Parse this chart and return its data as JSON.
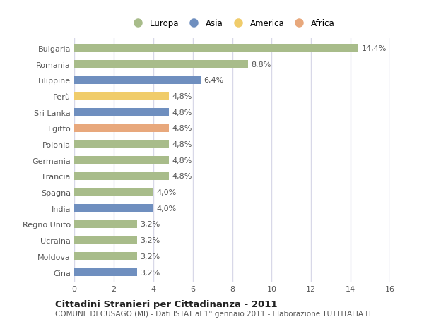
{
  "categories": [
    "Bulgaria",
    "Romania",
    "Filippine",
    "Perù",
    "Sri Lanka",
    "Egitto",
    "Polonia",
    "Germania",
    "Francia",
    "Spagna",
    "India",
    "Regno Unito",
    "Ucraina",
    "Moldova",
    "Cina"
  ],
  "values": [
    14.4,
    8.8,
    6.4,
    4.8,
    4.8,
    4.8,
    4.8,
    4.8,
    4.8,
    4.0,
    4.0,
    3.2,
    3.2,
    3.2,
    3.2
  ],
  "labels": [
    "14,4%",
    "8,8%",
    "6,4%",
    "4,8%",
    "4,8%",
    "4,8%",
    "4,8%",
    "4,8%",
    "4,8%",
    "4,0%",
    "4,0%",
    "3,2%",
    "3,2%",
    "3,2%",
    "3,2%"
  ],
  "colors": [
    "#a8bc8a",
    "#a8bc8a",
    "#6f8fbf",
    "#f0cc6a",
    "#6f8fbf",
    "#e8a87c",
    "#a8bc8a",
    "#a8bc8a",
    "#a8bc8a",
    "#a8bc8a",
    "#6f8fbf",
    "#a8bc8a",
    "#a8bc8a",
    "#a8bc8a",
    "#6f8fbf"
  ],
  "continent_labels": [
    "Europa",
    "Asia",
    "America",
    "Africa"
  ],
  "continent_colors": [
    "#a8bc8a",
    "#6f8fbf",
    "#f0cc6a",
    "#e8a87c"
  ],
  "xlim": [
    0,
    16
  ],
  "xticks": [
    0,
    2,
    4,
    6,
    8,
    10,
    12,
    14,
    16
  ],
  "title": "Cittadini Stranieri per Cittadinanza - 2011",
  "subtitle": "COMUNE DI CUSAGO (MI) - Dati ISTAT al 1° gennaio 2011 - Elaborazione TUTTITALIA.IT",
  "bg_color": "#ffffff",
  "bar_height": 0.5,
  "grid_color": "#d8d8e8",
  "label_fontsize": 8.0,
  "tick_fontsize": 8.0,
  "label_color": "#555555",
  "title_fontsize": 9.5,
  "subtitle_fontsize": 7.5
}
